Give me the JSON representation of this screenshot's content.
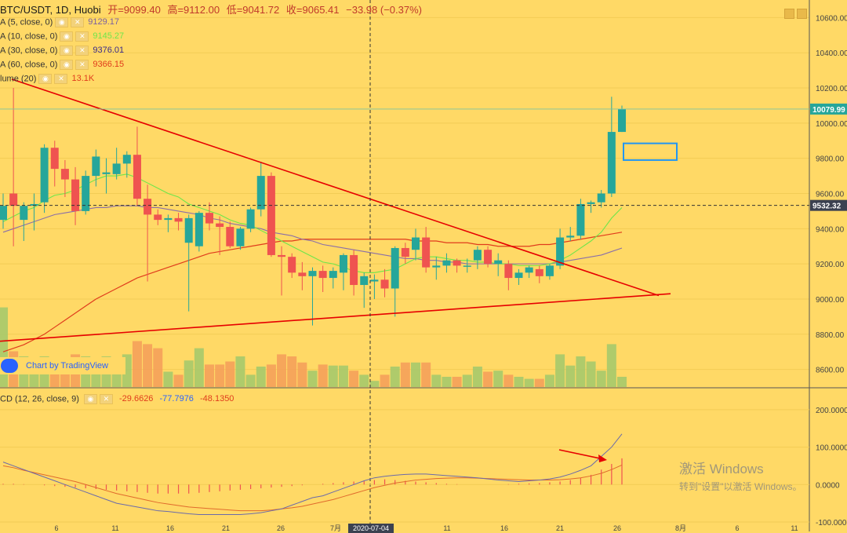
{
  "header": {
    "symbol": "BTC/USDT, 1D, Huobi",
    "open_label": "开=9099.40",
    "high_label": "高=9112.00",
    "low_label": "低=9041.72",
    "close_label": "收=9065.41",
    "change_label": "−33.98 (−0.37%)"
  },
  "indicators": [
    {
      "name": "A (5, close, 0)",
      "value": "9129.17",
      "color": "#7a5fa0"
    },
    {
      "name": "A (10, close, 0)",
      "value": "9145.27",
      "color": "#6ee64a"
    },
    {
      "name": "A (30, close, 0)",
      "value": "9376.01",
      "color": "#3a2a8a"
    },
    {
      "name": "A (60, close, 0)",
      "value": "9366.15",
      "color": "#e03c1c"
    },
    {
      "name": "lume (20)",
      "value": "13.1K",
      "color": "#e03c1c"
    }
  ],
  "macd_header": {
    "name": "CD (12, 26, close, 9)",
    "v1": "-29.6626",
    "v2": "-77.7976",
    "v3": "-48.1350"
  },
  "watermark_text": "Chart by TradingView",
  "windows_notice": {
    "line1": "激活 Windows",
    "line2": "转到\"设置\"以激活 Windows。"
  },
  "colors": {
    "up": "#26a69a",
    "down": "#ef5350",
    "ma10": "#6ee64a",
    "ma60": "#e03c1c",
    "trend": "#e60000",
    "box": "#2196f3"
  },
  "chart_data": {
    "type": "candlestick",
    "price_axis": {
      "range": [
        8500,
        10700
      ],
      "ticks": [
        "10600.00",
        "10400.00",
        "10200.00",
        "10000.00",
        "9800.00",
        "9600.00",
        "9400.00",
        "9200.00",
        "9000.00",
        "8800.00",
        "8600.00"
      ]
    },
    "price_labels": {
      "last": "10079.99",
      "crosshair": "9532.32"
    },
    "x_tick_labels": [
      "6",
      "11",
      "16",
      "21",
      "26",
      "7月",
      "2020-07-04",
      "6",
      "11",
      "16",
      "21",
      "26",
      "8月",
      "6",
      "11"
    ],
    "candles": [
      {
        "o": 9450,
        "h": 9600,
        "l": 9400,
        "c": 9530
      },
      {
        "o": 9600,
        "h": 10200,
        "l": 9300,
        "c": 9530
      },
      {
        "o": 9450,
        "h": 9550,
        "l": 9330,
        "c": 9530
      },
      {
        "o": 9530,
        "h": 9600,
        "l": 9390,
        "c": 9540
      },
      {
        "o": 9550,
        "h": 9880,
        "l": 9490,
        "c": 9860
      },
      {
        "o": 9860,
        "h": 9900,
        "l": 9640,
        "c": 9740
      },
      {
        "o": 9740,
        "h": 9790,
        "l": 9580,
        "c": 9680
      },
      {
        "o": 9680,
        "h": 9750,
        "l": 9420,
        "c": 9500
      },
      {
        "o": 9500,
        "h": 9730,
        "l": 9480,
        "c": 9700
      },
      {
        "o": 9700,
        "h": 9850,
        "l": 9640,
        "c": 9810
      },
      {
        "o": 9710,
        "h": 9800,
        "l": 9600,
        "c": 9720
      },
      {
        "o": 9710,
        "h": 9860,
        "l": 9680,
        "c": 9770
      },
      {
        "o": 9770,
        "h": 9840,
        "l": 9690,
        "c": 9820
      },
      {
        "o": 9820,
        "h": 9980,
        "l": 9530,
        "c": 9570
      },
      {
        "o": 9570,
        "h": 9650,
        "l": 9100,
        "c": 9480
      },
      {
        "o": 9480,
        "h": 9510,
        "l": 9420,
        "c": 9450
      },
      {
        "o": 9450,
        "h": 9480,
        "l": 9380,
        "c": 9460
      },
      {
        "o": 9460,
        "h": 9490,
        "l": 9390,
        "c": 9440
      },
      {
        "o": 9320,
        "h": 9480,
        "l": 8930,
        "c": 9460
      },
      {
        "o": 9300,
        "h": 9500,
        "l": 9270,
        "c": 9490
      },
      {
        "o": 9490,
        "h": 9550,
        "l": 9390,
        "c": 9430
      },
      {
        "o": 9430,
        "h": 9470,
        "l": 9250,
        "c": 9410
      },
      {
        "o": 9410,
        "h": 9440,
        "l": 9290,
        "c": 9300
      },
      {
        "o": 9300,
        "h": 9410,
        "l": 9280,
        "c": 9400
      },
      {
        "o": 9400,
        "h": 9520,
        "l": 9380,
        "c": 9510
      },
      {
        "o": 9510,
        "h": 9780,
        "l": 9470,
        "c": 9700
      },
      {
        "o": 9700,
        "h": 9720,
        "l": 9240,
        "c": 9250
      },
      {
        "o": 9250,
        "h": 9300,
        "l": 9020,
        "c": 9240
      },
      {
        "o": 9240,
        "h": 9260,
        "l": 9120,
        "c": 9150
      },
      {
        "o": 9150,
        "h": 9210,
        "l": 9050,
        "c": 9130
      },
      {
        "o": 9130,
        "h": 9180,
        "l": 8850,
        "c": 9160
      },
      {
        "o": 9160,
        "h": 9190,
        "l": 9040,
        "c": 9120
      },
      {
        "o": 9120,
        "h": 9180,
        "l": 9060,
        "c": 9160
      },
      {
        "o": 9150,
        "h": 9260,
        "l": 9050,
        "c": 9250
      },
      {
        "o": 9250,
        "h": 9280,
        "l": 9020,
        "c": 9080
      },
      {
        "o": 9080,
        "h": 9150,
        "l": 8950,
        "c": 9130
      },
      {
        "o": 9100,
        "h": 9140,
        "l": 9000,
        "c": 9110
      },
      {
        "o": 9110,
        "h": 9170,
        "l": 9010,
        "c": 9060
      },
      {
        "o": 9060,
        "h": 9300,
        "l": 8900,
        "c": 9290
      },
      {
        "o": 9290,
        "h": 9320,
        "l": 9200,
        "c": 9240
      },
      {
        "o": 9280,
        "h": 9400,
        "l": 9220,
        "c": 9350
      },
      {
        "o": 9350,
        "h": 9410,
        "l": 9150,
        "c": 9180
      },
      {
        "o": 9180,
        "h": 9240,
        "l": 9110,
        "c": 9190
      },
      {
        "o": 9190,
        "h": 9260,
        "l": 9150,
        "c": 9220
      },
      {
        "o": 9220,
        "h": 9230,
        "l": 9150,
        "c": 9190
      },
      {
        "o": 9190,
        "h": 9230,
        "l": 9150,
        "c": 9190
      },
      {
        "o": 9220,
        "h": 9300,
        "l": 9170,
        "c": 9280
      },
      {
        "o": 9280,
        "h": 9300,
        "l": 9180,
        "c": 9200
      },
      {
        "o": 9200,
        "h": 9260,
        "l": 9130,
        "c": 9220
      },
      {
        "o": 9200,
        "h": 9220,
        "l": 9050,
        "c": 9120
      },
      {
        "o": 9120,
        "h": 9170,
        "l": 9080,
        "c": 9150
      },
      {
        "o": 9150,
        "h": 9190,
        "l": 9120,
        "c": 9180
      },
      {
        "o": 9170,
        "h": 9190,
        "l": 9090,
        "c": 9130
      },
      {
        "o": 9130,
        "h": 9200,
        "l": 9110,
        "c": 9190
      },
      {
        "o": 9190,
        "h": 9400,
        "l": 9170,
        "c": 9350
      },
      {
        "o": 9350,
        "h": 9410,
        "l": 9330,
        "c": 9360
      },
      {
        "o": 9360,
        "h": 9570,
        "l": 9340,
        "c": 9540
      },
      {
        "o": 9540,
        "h": 9560,
        "l": 9490,
        "c": 9550
      },
      {
        "o": 9550,
        "h": 9620,
        "l": 9520,
        "c": 9600
      },
      {
        "o": 9600,
        "h": 10150,
        "l": 9580,
        "c": 9950
      },
      {
        "o": 9950,
        "h": 10100,
        "l": 9950,
        "c": 10080
      }
    ],
    "ma10": [
      9440,
      9470,
      9500,
      9520,
      9560,
      9590,
      9600,
      9620,
      9650,
      9680,
      9700,
      9700,
      9710,
      9690,
      9660,
      9630,
      9600,
      9580,
      9540,
      9520,
      9500,
      9480,
      9450,
      9430,
      9420,
      9390,
      9360,
      9330,
      9300,
      9270,
      9240,
      9210,
      9200,
      9180,
      9160,
      9150,
      9150,
      9160,
      9170,
      9200,
      9230,
      9240,
      9240,
      9230,
      9220,
      9220,
      9210,
      9210,
      9200,
      9200,
      9190,
      9190,
      9190,
      9200,
      9220,
      9250,
      9290,
      9330,
      9380,
      9460,
      9520
    ],
    "ma60": [
      8700,
      8720,
      8740,
      8770,
      8800,
      8840,
      8880,
      8920,
      8960,
      9000,
      9030,
      9060,
      9090,
      9120,
      9140,
      9160,
      9180,
      9200,
      9220,
      9240,
      9260,
      9270,
      9280,
      9290,
      9300,
      9310,
      9320,
      9330,
      9330,
      9340,
      9340,
      9340,
      9340,
      9340,
      9340,
      9340,
      9340,
      9340,
      9340,
      9340,
      9330,
      9330,
      9330,
      9320,
      9320,
      9320,
      9310,
      9310,
      9300,
      9300,
      9300,
      9300,
      9310,
      9310,
      9320,
      9330,
      9340,
      9350,
      9360,
      9370,
      9380
    ],
    "ma30": [
      9380,
      9400,
      9420,
      9440,
      9460,
      9480,
      9490,
      9500,
      9510,
      9520,
      9520,
      9530,
      9530,
      9530,
      9520,
      9520,
      9510,
      9500,
      9490,
      9480,
      9460,
      9450,
      9430,
      9420,
      9410,
      9400,
      9380,
      9370,
      9360,
      9340,
      9330,
      9310,
      9300,
      9290,
      9280,
      9270,
      9260,
      9250,
      9240,
      9230,
      9230,
      9220,
      9220,
      9210,
      9210,
      9200,
      9200,
      9200,
      9200,
      9200,
      9200,
      9200,
      9200,
      9200,
      9210,
      9220,
      9230,
      9240,
      9250,
      9270,
      9290
    ],
    "volume": [
      0.78,
      0.35,
      0.3,
      0.28,
      0.3,
      0.25,
      0.28,
      0.32,
      0.3,
      0.28,
      0.3,
      0.28,
      0.32,
      0.45,
      0.42,
      0.38,
      0.15,
      0.12,
      0.26,
      0.38,
      0.22,
      0.22,
      0.25,
      0.3,
      0.12,
      0.2,
      0.22,
      0.32,
      0.3,
      0.24,
      0.16,
      0.22,
      0.21,
      0.21,
      0.16,
      0.12,
      0.06,
      0.12,
      0.2,
      0.24,
      0.24,
      0.24,
      0.12,
      0.1,
      0.1,
      0.12,
      0.2,
      0.15,
      0.16,
      0.12,
      0.1,
      0.08,
      0.08,
      0.12,
      0.32,
      0.21,
      0.3,
      0.25,
      0.16,
      0.42,
      0.1
    ],
    "macd_axis": {
      "range": [
        -100,
        250
      ],
      "ticks": [
        "200.0000",
        "100.0000",
        "0.0000",
        "-100.0000"
      ]
    },
    "macd_line": [
      60,
      50,
      40,
      30,
      20,
      10,
      0,
      -10,
      -20,
      -30,
      -40,
      -50,
      -55,
      -60,
      -65,
      -70,
      -72,
      -75,
      -78,
      -80,
      -80,
      -80,
      -80,
      -80,
      -78,
      -75,
      -70,
      -65,
      -55,
      -45,
      -35,
      -30,
      -20,
      -10,
      0,
      10,
      18,
      22,
      25,
      27,
      28,
      28,
      26,
      24,
      22,
      20,
      18,
      15,
      12,
      10,
      8,
      10,
      12,
      15,
      20,
      28,
      38,
      50,
      75,
      100,
      135
    ],
    "signal_line": [
      50,
      45,
      38,
      32,
      26,
      20,
      14,
      8,
      0,
      -8,
      -16,
      -24,
      -30,
      -36,
      -42,
      -48,
      -52,
      -56,
      -60,
      -62,
      -64,
      -66,
      -68,
      -70,
      -70,
      -70,
      -68,
      -65,
      -62,
      -58,
      -52,
      -46,
      -40,
      -32,
      -24,
      -16,
      -8,
      -2,
      4,
      8,
      12,
      14,
      16,
      17,
      18,
      18,
      17,
      16,
      15,
      14,
      13,
      12,
      12,
      12,
      13,
      15,
      18,
      23,
      30,
      40,
      52
    ],
    "macd_hist": [
      2,
      2,
      1,
      0,
      -2,
      -4,
      -6,
      -8,
      -10,
      -12,
      -14,
      -16,
      -18,
      -20,
      -22,
      -24,
      -24,
      -24,
      -24,
      -22,
      -20,
      -18,
      -16,
      -14,
      -12,
      -10,
      -8,
      -6,
      -4,
      -2,
      0,
      2,
      4,
      6,
      8,
      10,
      12,
      14,
      12,
      10,
      8,
      6,
      4,
      2,
      1,
      0,
      0,
      0,
      0,
      1,
      2,
      3,
      4,
      6,
      8,
      12,
      18,
      26,
      40,
      55,
      70
    ]
  }
}
